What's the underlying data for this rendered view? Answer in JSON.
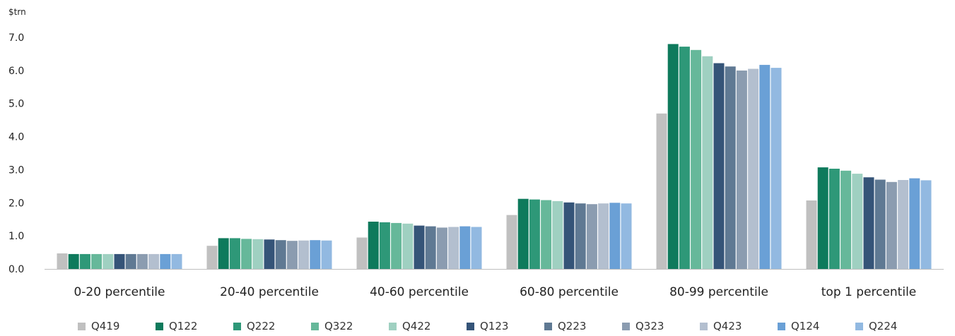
{
  "unit_label": "$trn",
  "chart_data": {
    "type": "bar",
    "title": "",
    "xlabel": "",
    "ylabel": "$trn",
    "ylim": [
      0,
      7
    ],
    "yticks": [
      "0.0",
      "1.0",
      "2.0",
      "3.0",
      "4.0",
      "5.0",
      "6.0",
      "7.0"
    ],
    "grid": false,
    "legend_position": "bottom",
    "categories": [
      "0-20 percentile",
      "20-40 percentile",
      "40-60 percentile",
      "60-80 percentile",
      "80-99 percentile",
      "top 1 percentile"
    ],
    "series": [
      {
        "name": "Q419",
        "color": "#c0c0c0",
        "values": [
          0.47,
          0.7,
          0.95,
          1.63,
          4.7,
          2.07
        ]
      },
      {
        "name": "Q122",
        "color": "#0e7a5c",
        "values": [
          0.45,
          0.93,
          1.43,
          2.12,
          6.8,
          3.07
        ]
      },
      {
        "name": "Q222",
        "color": "#2e9878",
        "values": [
          0.45,
          0.93,
          1.41,
          2.1,
          6.72,
          3.03
        ]
      },
      {
        "name": "Q322",
        "color": "#66b89a",
        "values": [
          0.45,
          0.91,
          1.39,
          2.08,
          6.62,
          2.97
        ]
      },
      {
        "name": "Q422",
        "color": "#9fd0c1",
        "values": [
          0.45,
          0.9,
          1.37,
          2.05,
          6.43,
          2.88
        ]
      },
      {
        "name": "Q123",
        "color": "#355478",
        "values": [
          0.45,
          0.89,
          1.31,
          2.01,
          6.22,
          2.77
        ]
      },
      {
        "name": "Q223",
        "color": "#5f7993",
        "values": [
          0.45,
          0.87,
          1.29,
          1.98,
          6.12,
          2.7
        ]
      },
      {
        "name": "Q323",
        "color": "#8b9cb0",
        "values": [
          0.45,
          0.85,
          1.25,
          1.96,
          6.0,
          2.63
        ]
      },
      {
        "name": "Q423",
        "color": "#b3bfcf",
        "values": [
          0.45,
          0.86,
          1.27,
          1.98,
          6.05,
          2.69
        ]
      },
      {
        "name": "Q124",
        "color": "#6aa0d6",
        "values": [
          0.45,
          0.87,
          1.29,
          2.0,
          6.17,
          2.74
        ]
      },
      {
        "name": "Q224",
        "color": "#92b9e1",
        "values": [
          0.45,
          0.86,
          1.27,
          1.98,
          6.08,
          2.68
        ]
      }
    ]
  }
}
